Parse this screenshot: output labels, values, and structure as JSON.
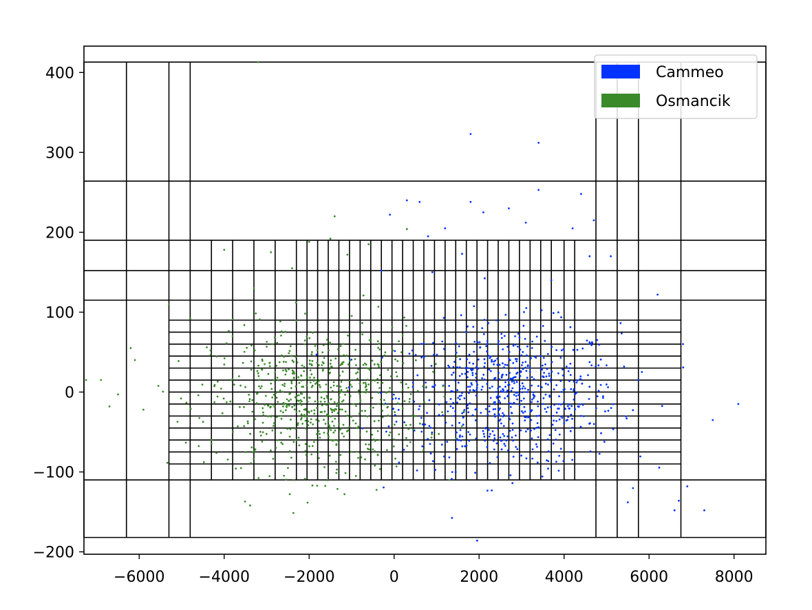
{
  "chart_data": {
    "type": "scatter",
    "title": "",
    "xlabel": "",
    "ylabel": "",
    "xlim": [
      -7300,
      8750
    ],
    "ylim": [
      -203,
      433
    ],
    "x_ticks": [
      -6000,
      -4000,
      -2000,
      0,
      2000,
      4000,
      6000,
      8000
    ],
    "y_ticks": [
      -200,
      -100,
      0,
      100,
      200,
      300,
      400
    ],
    "x_tick_labels": [
      "−6000",
      "−4000",
      "−2000",
      "0",
      "2000",
      "4000",
      "6000",
      "8000"
    ],
    "y_tick_labels": [
      "−200",
      "−100",
      "0",
      "100",
      "200",
      "300",
      "400"
    ],
    "grid": false,
    "legend_position": "top-right",
    "series": [
      {
        "name": "Cammeo",
        "color": "#0033ff",
        "center": [
          2700,
          -5
        ],
        "spread": [
          1300,
          45
        ],
        "count": 650,
        "outliers": [
          [
            1800,
            323
          ],
          [
            3400,
            312
          ],
          [
            3400,
            253
          ],
          [
            4400,
            248
          ],
          [
            4700,
            215
          ],
          [
            3100,
            212
          ],
          [
            4200,
            205
          ],
          [
            1200,
            205
          ],
          [
            1800,
            238
          ],
          [
            2100,
            225
          ],
          [
            300,
            240
          ],
          [
            600,
            238
          ],
          [
            -100,
            222
          ],
          [
            800,
            195
          ],
          [
            2700,
            230
          ],
          [
            5100,
            170
          ],
          [
            6200,
            122
          ],
          [
            8100,
            -15
          ],
          [
            7500,
            -35
          ],
          [
            6900,
            -118
          ],
          [
            7300,
            -148
          ],
          [
            6600,
            -148
          ],
          [
            6700,
            -136
          ],
          [
            5500,
            -138
          ],
          [
            6800,
            60
          ],
          [
            4600,
            170
          ],
          [
            3700,
            140
          ],
          [
            -300,
            152
          ],
          [
            1600,
            173
          ],
          [
            900,
            150
          ]
        ]
      },
      {
        "name": "Osmancik",
        "color": "#3a8a2a",
        "center": [
          -1800,
          -10
        ],
        "spread": [
          1250,
          45
        ],
        "count": 650,
        "outliers": [
          [
            -3200,
            413
          ],
          [
            -1400,
            220
          ],
          [
            -1500,
            192
          ],
          [
            -2000,
            188
          ],
          [
            -4000,
            178
          ],
          [
            -2900,
            175
          ],
          [
            300,
            204
          ],
          [
            -6900,
            15
          ],
          [
            -6700,
            -18
          ],
          [
            -6100,
            40
          ],
          [
            -5900,
            -22
          ],
          [
            -6200,
            55
          ],
          [
            -7250,
            15
          ],
          [
            -4800,
            92
          ],
          [
            -5300,
            110
          ],
          [
            -2400,
            155
          ],
          [
            -3300,
            130
          ],
          [
            -1100,
            172
          ],
          [
            -600,
            185
          ],
          [
            1300,
            -110
          ],
          [
            -900,
            -105
          ],
          [
            -2500,
            -95
          ],
          [
            -4300,
            -60
          ],
          [
            -3800,
            70
          ]
        ]
      }
    ],
    "partition": {
      "x_breaks": [
        -7300,
        -6300,
        -5300,
        -4800,
        -4300,
        -3800,
        -3300,
        -2800,
        -2300,
        -2050,
        -1800,
        -1550,
        -1300,
        -1050,
        -800,
        -550,
        -300,
        -50,
        200,
        450,
        700,
        950,
        1200,
        1450,
        1700,
        1950,
        2200,
        2450,
        2700,
        2950,
        3200,
        3450,
        3700,
        4000,
        4250,
        4750,
        5250,
        5750,
        6750,
        8750
      ],
      "y_breaks": [
        -182,
        -110,
        -90,
        -75,
        -60,
        -45,
        -30,
        -15,
        0,
        15,
        30,
        45,
        60,
        75,
        90,
        115,
        152,
        190,
        264,
        413
      ]
    }
  }
}
